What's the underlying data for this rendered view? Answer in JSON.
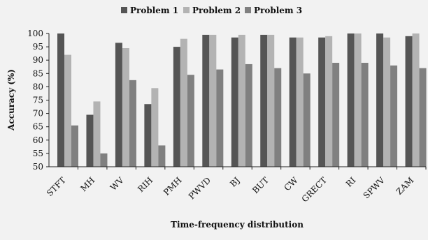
{
  "chart_data": {
    "type": "bar",
    "xlabel": "Time-frequency distribution",
    "ylabel": "Accuracy (%)",
    "ylim": [
      50,
      100
    ],
    "yticks": [
      50,
      55,
      60,
      65,
      70,
      75,
      80,
      85,
      90,
      95,
      100
    ],
    "grid": false,
    "legend_position": "top",
    "categories": [
      "STFT",
      "MH",
      "WV",
      "RIH",
      "PMH",
      "PWVD",
      "BJ",
      "BUT",
      "CW",
      "GRECT",
      "RI",
      "SPWV",
      "ZAM"
    ],
    "series": [
      {
        "name": "Problem 1",
        "color": "#555555",
        "values": [
          100,
          69.5,
          96.5,
          73.5,
          95,
          99.5,
          98.5,
          99.5,
          98.5,
          98.5,
          100,
          100,
          99
        ]
      },
      {
        "name": "Problem 2",
        "color": "#b3b3b3",
        "values": [
          92,
          74.5,
          94.5,
          79.5,
          98,
          99.5,
          99.5,
          99.5,
          98.5,
          99,
          100,
          98.5,
          100
        ]
      },
      {
        "name": "Problem 3",
        "color": "#808080",
        "values": [
          65.5,
          55,
          82.5,
          58,
          84.5,
          86.5,
          88.5,
          87,
          85,
          89,
          89,
          88,
          87
        ]
      }
    ]
  }
}
